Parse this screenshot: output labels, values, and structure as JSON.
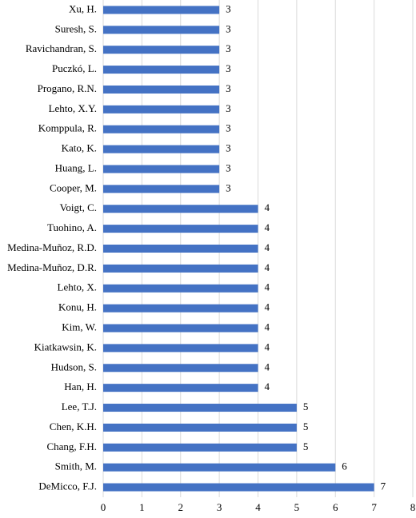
{
  "chart_data": {
    "type": "bar",
    "orientation": "horizontal",
    "categories": [
      "Xu, H.",
      "Suresh, S.",
      "Ravichandran, S.",
      "Puczkó, L.",
      "Progano, R.N.",
      "Lehto, X.Y.",
      "Komppula, R.",
      "Kato, K.",
      "Huang, L.",
      "Cooper, M.",
      "Voigt, C.",
      "Tuohino, A.",
      "Medina-Muñoz, R.D.",
      "Medina-Muñoz, D.R.",
      "Lehto, X.",
      "Konu, H.",
      "Kim, W.",
      "Kiatkawsin, K.",
      "Hudson, S.",
      "Han, H.",
      "Lee, T.J.",
      "Chen, K.H.",
      "Chang, F.H.",
      "Smith, M.",
      "DeMicco, F.J."
    ],
    "values": [
      3,
      3,
      3,
      3,
      3,
      3,
      3,
      3,
      3,
      3,
      4,
      4,
      4,
      4,
      4,
      4,
      4,
      4,
      4,
      4,
      5,
      5,
      5,
      6,
      7
    ],
    "color": "#4472c4",
    "xlim": [
      0,
      8
    ],
    "xticks": [
      0,
      1,
      2,
      3,
      4,
      5,
      6,
      7,
      8
    ],
    "grid": true,
    "data_labels": true
  }
}
